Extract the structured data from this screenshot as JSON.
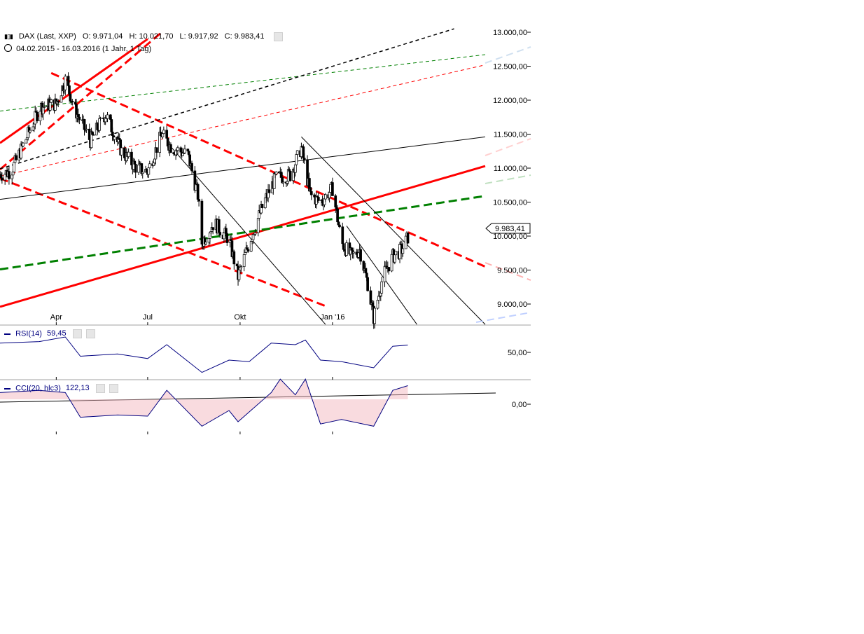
{
  "header": {
    "symbol_icon": "candlestick-icon",
    "symbol": "DAX (Last, XXP)",
    "open": "O: 9.971,04",
    "high": "H: 10.021,70",
    "low": "L: 9.917,92",
    "close": "C: 9.983,41",
    "clock_icon": "clock-icon",
    "range": "04.02.2015 - 16.03.2016 (1 Jahr, 1 Tag)"
  },
  "rsi": {
    "label": "RSI(14)",
    "value": "59,45",
    "axis_label": "50,00"
  },
  "cci": {
    "label": "CCI(20, hlc3)",
    "value": "122,13",
    "axis_label": "0,00"
  },
  "last_price_tag": "9.983,41",
  "colors": {
    "red": "#ff0000",
    "green": "#008000",
    "black": "#000000",
    "indicator": "#000080"
  },
  "chart_data": {
    "type": "candlestick",
    "title": "DAX (Last, XXP)",
    "date_range": [
      "04.02.2015",
      "16.03.2016"
    ],
    "y_axis_ticks": [
      "13.000,00",
      "12.500,00",
      "12.000,00",
      "11.500,00",
      "11.000,00",
      "10.500,00",
      "10.000,00",
      "9.500,00",
      "9.000,00"
    ],
    "x_axis_ticks": [
      "Apr",
      "Jul",
      "Okt",
      "Jan '16"
    ],
    "ylim": [
      8700,
      13100
    ],
    "close_series": [
      {
        "x": "2015-02-04",
        "y": 10910
      },
      {
        "x": "2015-02-15",
        "y": 10950
      },
      {
        "x": "2015-03-01",
        "y": 11400
      },
      {
        "x": "2015-03-16",
        "y": 11900
      },
      {
        "x": "2015-04-01",
        "y": 11950
      },
      {
        "x": "2015-04-10",
        "y": 12300
      },
      {
        "x": "2015-04-20",
        "y": 11850
      },
      {
        "x": "2015-05-05",
        "y": 11400
      },
      {
        "x": "2015-05-20",
        "y": 11800
      },
      {
        "x": "2015-06-05",
        "y": 11250
      },
      {
        "x": "2015-06-20",
        "y": 11000
      },
      {
        "x": "2015-07-01",
        "y": 10950
      },
      {
        "x": "2015-07-15",
        "y": 11500
      },
      {
        "x": "2015-07-25",
        "y": 11300
      },
      {
        "x": "2015-08-10",
        "y": 11200
      },
      {
        "x": "2015-08-20",
        "y": 10600
      },
      {
        "x": "2015-08-24",
        "y": 9900
      },
      {
        "x": "2015-09-05",
        "y": 10200
      },
      {
        "x": "2015-09-20",
        "y": 9950
      },
      {
        "x": "2015-09-29",
        "y": 9400
      },
      {
        "x": "2015-10-10",
        "y": 9900
      },
      {
        "x": "2015-10-25",
        "y": 10500
      },
      {
        "x": "2015-11-05",
        "y": 10850
      },
      {
        "x": "2015-11-20",
        "y": 10900
      },
      {
        "x": "2015-12-01",
        "y": 11300
      },
      {
        "x": "2015-12-10",
        "y": 10600
      },
      {
        "x": "2015-12-20",
        "y": 10500
      },
      {
        "x": "2016-01-01",
        "y": 10700
      },
      {
        "x": "2016-01-10",
        "y": 9900
      },
      {
        "x": "2016-01-20",
        "y": 9700
      },
      {
        "x": "2016-01-28",
        "y": 9800
      },
      {
        "x": "2016-02-05",
        "y": 9300
      },
      {
        "x": "2016-02-11",
        "y": 8800
      },
      {
        "x": "2016-02-20",
        "y": 9400
      },
      {
        "x": "2016-03-01",
        "y": 9700
      },
      {
        "x": "2016-03-10",
        "y": 9800
      },
      {
        "x": "2016-03-16",
        "y": 9983.41
      }
    ],
    "rsi_series": [
      {
        "x": "2015-02-04",
        "y": 62
      },
      {
        "x": "2015-03-15",
        "y": 64
      },
      {
        "x": "2015-04-10",
        "y": 70
      },
      {
        "x": "2015-04-25",
        "y": 45
      },
      {
        "x": "2015-06-01",
        "y": 48
      },
      {
        "x": "2015-07-01",
        "y": 42
      },
      {
        "x": "2015-07-20",
        "y": 60
      },
      {
        "x": "2015-08-24",
        "y": 24
      },
      {
        "x": "2015-09-20",
        "y": 40
      },
      {
        "x": "2015-10-10",
        "y": 38
      },
      {
        "x": "2015-11-01",
        "y": 62
      },
      {
        "x": "2015-11-25",
        "y": 60
      },
      {
        "x": "2015-12-05",
        "y": 66
      },
      {
        "x": "2015-12-20",
        "y": 40
      },
      {
        "x": "2016-01-10",
        "y": 38
      },
      {
        "x": "2016-02-11",
        "y": 30
      },
      {
        "x": "2016-03-01",
        "y": 58
      },
      {
        "x": "2016-03-16",
        "y": 59.45
      }
    ],
    "cci_series": [
      {
        "x": "2015-02-04",
        "y": 60
      },
      {
        "x": "2015-03-15",
        "y": 80
      },
      {
        "x": "2015-04-10",
        "y": 60
      },
      {
        "x": "2015-04-25",
        "y": -160
      },
      {
        "x": "2015-06-01",
        "y": -140
      },
      {
        "x": "2015-07-01",
        "y": -150
      },
      {
        "x": "2015-07-20",
        "y": 80
      },
      {
        "x": "2015-08-24",
        "y": -240
      },
      {
        "x": "2015-09-20",
        "y": -100
      },
      {
        "x": "2015-09-29",
        "y": -200
      },
      {
        "x": "2015-11-01",
        "y": 60
      },
      {
        "x": "2015-11-10",
        "y": 180
      },
      {
        "x": "2015-11-25",
        "y": 40
      },
      {
        "x": "2015-12-05",
        "y": 180
      },
      {
        "x": "2015-12-20",
        "y": -220
      },
      {
        "x": "2016-01-10",
        "y": -180
      },
      {
        "x": "2016-02-11",
        "y": -240
      },
      {
        "x": "2016-03-01",
        "y": 80
      },
      {
        "x": "2016-03-16",
        "y": 122.13
      }
    ],
    "trendlines": [
      {
        "color": "red",
        "style": "solid",
        "width": 3,
        "from": [
          "2015-02-04",
          11370
        ],
        "to": [
          "2015-07-01",
          12900
        ]
      },
      {
        "color": "red",
        "style": "solid",
        "width": 3,
        "from": [
          "2015-02-04",
          8960
        ],
        "to": [
          "2016-06-01",
          11030
        ]
      },
      {
        "color": "red",
        "style": "dashed",
        "width": 3,
        "from": [
          "2015-03-27",
          12400
        ],
        "to": [
          "2016-06-01",
          9550
        ]
      },
      {
        "color": "red",
        "style": "dashed",
        "width": 3,
        "from": [
          "2015-02-04",
          10850
        ],
        "to": [
          "2015-12-25",
          8970
        ]
      },
      {
        "color": "red",
        "style": "dashed",
        "width": 3,
        "from": [
          "2015-02-04",
          10980
        ],
        "to": [
          "2015-07-15",
          13000
        ]
      },
      {
        "color": "green",
        "style": "dashed",
        "width": 3,
        "from": [
          "2015-02-04",
          9510
        ],
        "to": [
          "2016-06-01",
          10590
        ]
      },
      {
        "color": "green",
        "style": "dashed",
        "width": 1,
        "from": [
          "2015-02-04",
          11840
        ],
        "to": [
          "2016-06-01",
          12670
        ]
      },
      {
        "color": "red",
        "style": "dashed",
        "width": 1,
        "from": [
          "2015-02-04",
          10880
        ],
        "to": [
          "2016-06-01",
          12520
        ]
      },
      {
        "color": "black",
        "style": "dashed",
        "width": 1.5,
        "from": [
          "2015-02-04",
          10990
        ],
        "to": [
          "2016-05-01",
          13050
        ]
      },
      {
        "color": "black",
        "style": "solid",
        "width": 1,
        "from": [
          "2015-02-04",
          10540
        ],
        "to": [
          "2016-06-01",
          11460
        ]
      },
      {
        "color": "black",
        "style": "solid",
        "width": 1,
        "from": [
          "2015-07-25",
          11300
        ],
        "to": [
          "2015-12-25",
          8700
        ]
      },
      {
        "color": "black",
        "style": "solid",
        "width": 1,
        "from": [
          "2015-12-01",
          11460
        ],
        "to": [
          "2016-06-01",
          8700
        ]
      },
      {
        "color": "black",
        "style": "solid",
        "width": 1,
        "from": [
          "2016-01-15",
          10150
        ],
        "to": [
          "2016-03-25",
          8700
        ]
      }
    ]
  }
}
